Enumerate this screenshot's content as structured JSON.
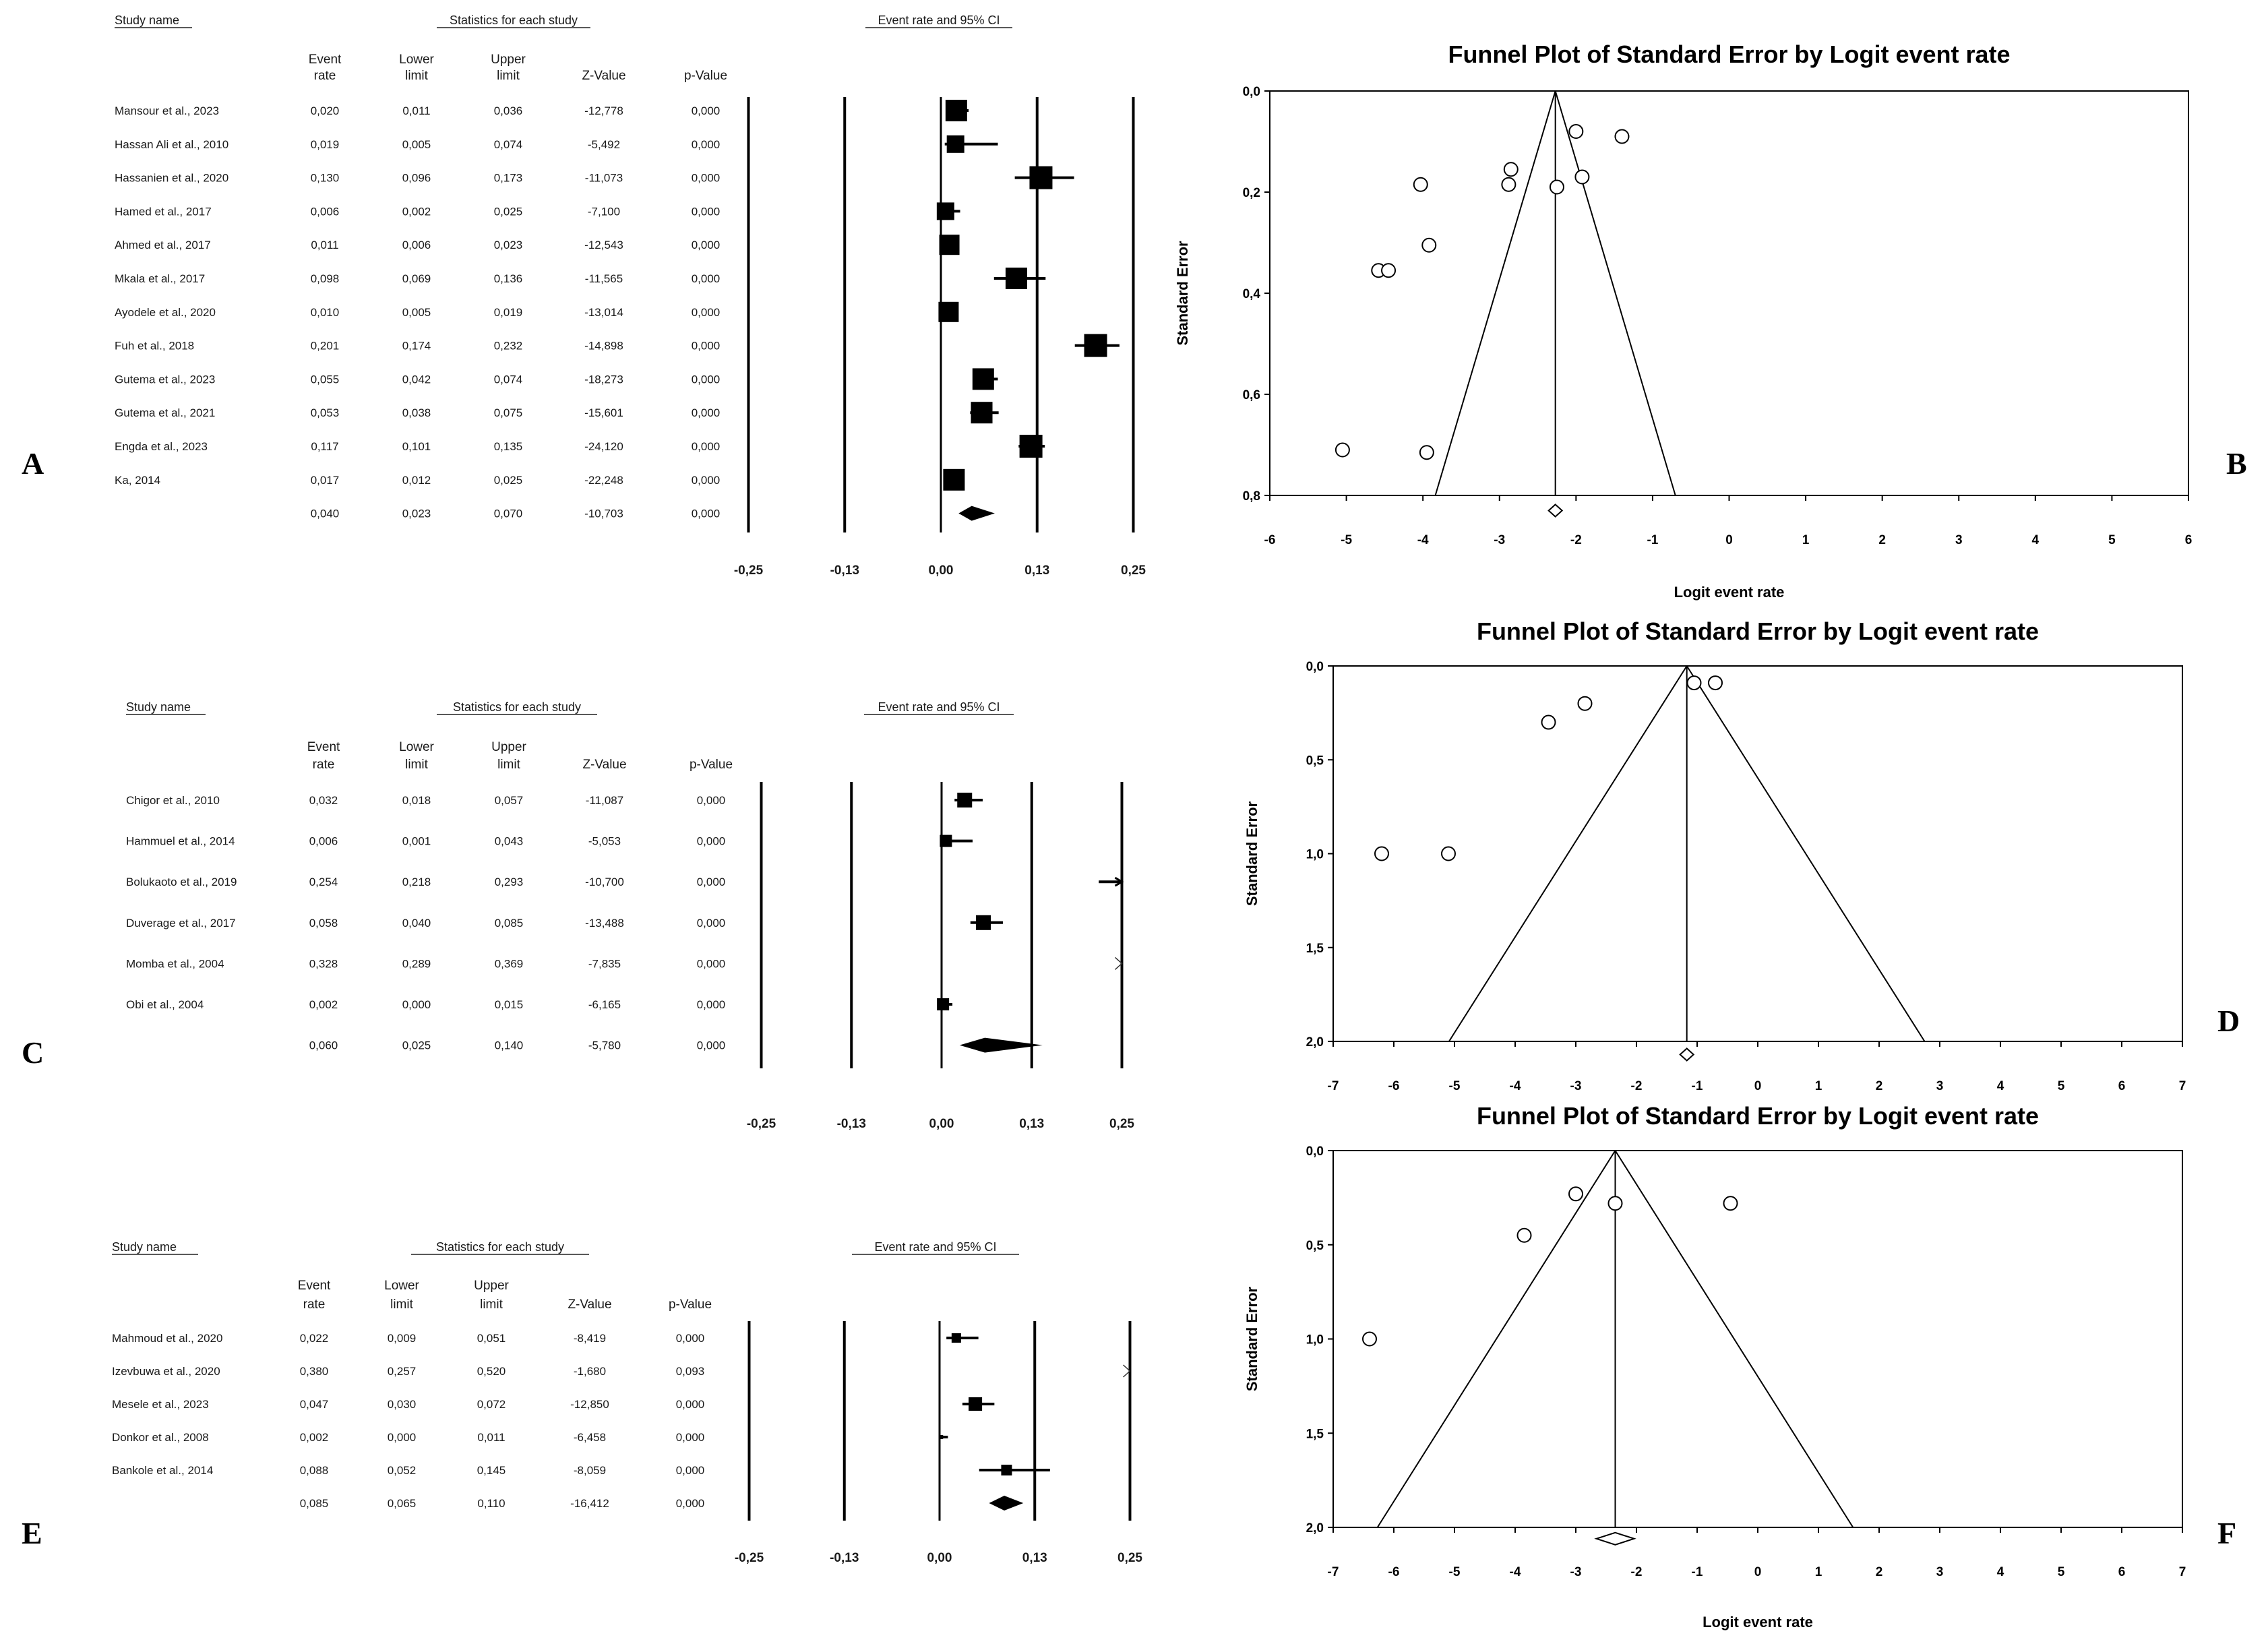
{
  "panel_labels": [
    "A",
    "B",
    "C",
    "D",
    "E",
    "F"
  ],
  "forest_headers": {
    "study_name": "Study name",
    "stats_group": "Statistics for each study",
    "ci_group": "Event rate and 95% CI",
    "event_rate_1": "Event",
    "event_rate_2": "rate",
    "lower_1": "Lower",
    "lower_2": "limit",
    "upper_1": "Upper",
    "upper_2": "limit",
    "z_value": "Z-Value",
    "p_value": "p-Value"
  },
  "forest_axis_ticks": [
    "-0,25",
    "-0,13",
    "0,00",
    "0,13",
    "0,25"
  ],
  "funnel_labels": {
    "title": "Funnel Plot of Standard Error by Logit event rate",
    "ylabel": "Standard Error",
    "xlabel": "Logit event rate"
  },
  "chart_data": [
    {
      "type": "forest",
      "panel": "A",
      "columns": [
        "Event rate",
        "Lower limit",
        "Upper limit",
        "Z-Value",
        "p-Value"
      ],
      "axis_range": [
        -0.25,
        0.25
      ],
      "rows": [
        {
          "study": "Mansour et al., 2023",
          "rate": "0,020",
          "lower": "0,011",
          "upper": "0,036",
          "z": "-12,778",
          "p": "0,000",
          "r": 0.02,
          "lo": 0.011,
          "hi": 0.036,
          "w": 16
        },
        {
          "study": "Hassan Ali et al., 2010",
          "rate": "0,019",
          "lower": "0,005",
          "upper": "0,074",
          "z": "-5,492",
          "p": "0,000",
          "r": 0.019,
          "lo": 0.005,
          "hi": 0.074,
          "w": 13
        },
        {
          "study": "Hassanien et al., 2020",
          "rate": "0,130",
          "lower": "0,096",
          "upper": "0,173",
          "z": "-11,073",
          "p": "0,000",
          "r": 0.13,
          "lo": 0.096,
          "hi": 0.173,
          "w": 17
        },
        {
          "study": "Hamed et al., 2017",
          "rate": "0,006",
          "lower": "0,002",
          "upper": "0,025",
          "z": "-7,100",
          "p": "0,000",
          "r": 0.006,
          "lo": 0.002,
          "hi": 0.025,
          "w": 13
        },
        {
          "study": "Ahmed et al., 2017",
          "rate": "0,011",
          "lower": "0,006",
          "upper": "0,023",
          "z": "-12,543",
          "p": "0,000",
          "r": 0.011,
          "lo": 0.006,
          "hi": 0.023,
          "w": 15
        },
        {
          "study": "Mkala et al., 2017",
          "rate": "0,098",
          "lower": "0,069",
          "upper": "0,136",
          "z": "-11,565",
          "p": "0,000",
          "r": 0.098,
          "lo": 0.069,
          "hi": 0.136,
          "w": 16
        },
        {
          "study": "Ayodele et al., 2020",
          "rate": "0,010",
          "lower": "0,005",
          "upper": "0,019",
          "z": "-13,014",
          "p": "0,000",
          "r": 0.01,
          "lo": 0.005,
          "hi": 0.019,
          "w": 15
        },
        {
          "study": "Fuh et al., 2018",
          "rate": "0,201",
          "lower": "0,174",
          "upper": "0,232",
          "z": "-14,898",
          "p": "0,000",
          "r": 0.201,
          "lo": 0.174,
          "hi": 0.232,
          "w": 17
        },
        {
          "study": "Gutema et al., 2023",
          "rate": "0,055",
          "lower": "0,042",
          "upper": "0,074",
          "z": "-18,273",
          "p": "0,000",
          "r": 0.055,
          "lo": 0.042,
          "hi": 0.074,
          "w": 16
        },
        {
          "study": "Gutema et al., 2021",
          "rate": "0,053",
          "lower": "0,038",
          "upper": "0,075",
          "z": "-15,601",
          "p": "0,000",
          "r": 0.053,
          "lo": 0.038,
          "hi": 0.075,
          "w": 16
        },
        {
          "study": "Engda et al., 2023",
          "rate": "0,117",
          "lower": "0,101",
          "upper": "0,135",
          "z": "-24,120",
          "p": "0,000",
          "r": 0.117,
          "lo": 0.101,
          "hi": 0.135,
          "w": 17
        },
        {
          "study": "Ka, 2014",
          "rate": "0,017",
          "lower": "0,012",
          "upper": "0,025",
          "z": "-22,248",
          "p": "0,000",
          "r": 0.017,
          "lo": 0.012,
          "hi": 0.025,
          "w": 16
        }
      ],
      "summary": {
        "rate": "0,040",
        "lower": "0,023",
        "upper": "0,070",
        "z": "-10,703",
        "p": "0,000",
        "r": 0.04,
        "lo": 0.023,
        "hi": 0.07
      }
    },
    {
      "type": "forest",
      "panel": "C",
      "columns": [
        "Event rate",
        "Lower limit",
        "Upper limit",
        "Z-Value",
        "p-Value"
      ],
      "axis_range": [
        -0.25,
        0.25
      ],
      "rows": [
        {
          "study": "Chigor et al., 2010",
          "rate": "0,032",
          "lower": "0,018",
          "upper": "0,057",
          "z": "-11,087",
          "p": "0,000",
          "r": 0.032,
          "lo": 0.018,
          "hi": 0.057,
          "w": 11
        },
        {
          "study": "Hammuel et al., 2014",
          "rate": "0,006",
          "lower": "0,001",
          "upper": "0,043",
          "z": "-5,053",
          "p": "0,000",
          "r": 0.006,
          "lo": 0.001,
          "hi": 0.043,
          "w": 9
        },
        {
          "study": "Bolukaoto et al., 2019",
          "rate": "0,254",
          "lower": "0,218",
          "upper": "0,293",
          "z": "-10,700",
          "p": "0,000",
          "r": 0.254,
          "lo": 0.218,
          "hi": 0.293,
          "w": 0
        },
        {
          "study": "Duverage et al., 2017",
          "rate": "0,058",
          "lower": "0,040",
          "upper": "0,085",
          "z": "-13,488",
          "p": "0,000",
          "r": 0.058,
          "lo": 0.04,
          "hi": 0.085,
          "w": 11
        },
        {
          "study": "Momba et al., 2004",
          "rate": "0,328",
          "lower": "0,289",
          "upper": "0,369",
          "z": "-7,835",
          "p": "0,000",
          "r": 0.328,
          "lo": 0.289,
          "hi": 0.369,
          "w": 0
        },
        {
          "study": "Obi et al., 2004",
          "rate": "0,002",
          "lower": "0,000",
          "upper": "0,015",
          "z": "-6,165",
          "p": "0,000",
          "r": 0.002,
          "lo": 0.0,
          "hi": 0.015,
          "w": 9
        }
      ],
      "summary": {
        "rate": "0,060",
        "lower": "0,025",
        "upper": "0,140",
        "z": "-5,780",
        "p": "0,000",
        "r": 0.06,
        "lo": 0.025,
        "hi": 0.14
      }
    },
    {
      "type": "forest",
      "panel": "E",
      "columns": [
        "Event rate",
        "Lower limit",
        "Upper limit",
        "Z-Value",
        "p-Value"
      ],
      "axis_range": [
        -0.25,
        0.25
      ],
      "rows": [
        {
          "study": "Mahmoud et al., 2020",
          "rate": "0,022",
          "lower": "0,009",
          "upper": "0,051",
          "z": "-8,419",
          "p": "0,000",
          "r": 0.022,
          "lo": 0.009,
          "hi": 0.051,
          "w": 7
        },
        {
          "study": "Izevbuwa et al., 2020",
          "rate": "0,380",
          "lower": "0,257",
          "upper": "0,520",
          "z": "-1,680",
          "p": "0,093",
          "r": 0.38,
          "lo": 0.257,
          "hi": 0.52,
          "w": 0
        },
        {
          "study": "Mesele et al., 2023",
          "rate": "0,047",
          "lower": "0,030",
          "upper": "0,072",
          "z": "-12,850",
          "p": "0,000",
          "r": 0.047,
          "lo": 0.03,
          "hi": 0.072,
          "w": 10
        },
        {
          "study": "Donkor et al., 2008",
          "rate": "0,002",
          "lower": "0,000",
          "upper": "0,011",
          "z": "-6,458",
          "p": "0,000",
          "r": 0.002,
          "lo": 0.0,
          "hi": 0.011,
          "w": 3
        },
        {
          "study": "Bankole et al., 2014",
          "rate": "0,088",
          "lower": "0,052",
          "upper": "0,145",
          "z": "-8,059",
          "p": "0,000",
          "r": 0.088,
          "lo": 0.052,
          "hi": 0.145,
          "w": 8
        }
      ],
      "summary": {
        "rate": "0,085",
        "lower": "0,065",
        "upper": "0,110",
        "z": "-16,412",
        "p": "0,000",
        "r": 0.085,
        "lo": 0.065,
        "hi": 0.11
      }
    },
    {
      "type": "scatter",
      "panel": "B",
      "title": "Funnel Plot of Standard Error by Logit event rate",
      "xlabel": "Logit event rate",
      "ylabel": "Standard Error",
      "xlim": [
        -6,
        6
      ],
      "ylim": [
        0.0,
        0.8
      ],
      "xticks": [
        "-6",
        "-5",
        "-4",
        "-3",
        "-2",
        "-1",
        "0",
        "1",
        "2",
        "3",
        "4",
        "5",
        "6"
      ],
      "yticks": [
        "0,0",
        "0,2",
        "0,4",
        "0,6",
        "0,8"
      ],
      "pooled": -2.27,
      "summary_se": 0.83,
      "points": [
        [
          -1.4,
          0.09
        ],
        [
          -2.0,
          0.08
        ],
        [
          -1.92,
          0.17
        ],
        [
          -2.25,
          0.19
        ],
        [
          -2.85,
          0.155
        ],
        [
          -2.88,
          0.185
        ],
        [
          -4.03,
          0.185
        ],
        [
          -3.92,
          0.305
        ],
        [
          -4.58,
          0.355
        ],
        [
          -4.45,
          0.355
        ],
        [
          -5.05,
          0.71
        ],
        [
          -3.95,
          0.715
        ]
      ]
    },
    {
      "type": "scatter",
      "panel": "D",
      "title": "Funnel Plot of Standard Error by Logit event rate",
      "xlabel": "",
      "ylabel": "Standard Error",
      "xlim": [
        -7,
        7
      ],
      "ylim": [
        0.0,
        2.0
      ],
      "xticks": [
        "-7",
        "-6",
        "-5",
        "-4",
        "-3",
        "-2",
        "-1",
        "0",
        "1",
        "2",
        "3",
        "4",
        "5",
        "6",
        "7"
      ],
      "yticks": [
        "0,0",
        "0,5",
        "1,0",
        "1,5",
        "2,0"
      ],
      "pooled": -1.17,
      "summary_se": 2.07,
      "points": [
        [
          -0.7,
          0.09
        ],
        [
          -1.05,
          0.09
        ],
        [
          -2.85,
          0.2
        ],
        [
          -3.45,
          0.3
        ],
        [
          -6.2,
          1.0
        ],
        [
          -5.1,
          1.0
        ]
      ]
    },
    {
      "type": "scatter",
      "panel": "F",
      "title": "Funnel Plot of Standard Error by Logit event rate",
      "xlabel": "Logit event rate",
      "ylabel": "Standard Error",
      "xlim": [
        -7,
        7
      ],
      "ylim": [
        0.0,
        2.0
      ],
      "xticks": [
        "-7",
        "-6",
        "-5",
        "-4",
        "-3",
        "-2",
        "-1",
        "0",
        "1",
        "2",
        "3",
        "4",
        "5",
        "6",
        "7"
      ],
      "yticks": [
        "0,0",
        "0,5",
        "1,0",
        "1,5",
        "2,0"
      ],
      "pooled": -2.35,
      "summary_se": 2.06,
      "points": [
        [
          -3.0,
          0.23
        ],
        [
          -2.35,
          0.28
        ],
        [
          -3.85,
          0.45
        ],
        [
          -0.45,
          0.28
        ],
        [
          -6.4,
          1.0
        ]
      ]
    }
  ]
}
